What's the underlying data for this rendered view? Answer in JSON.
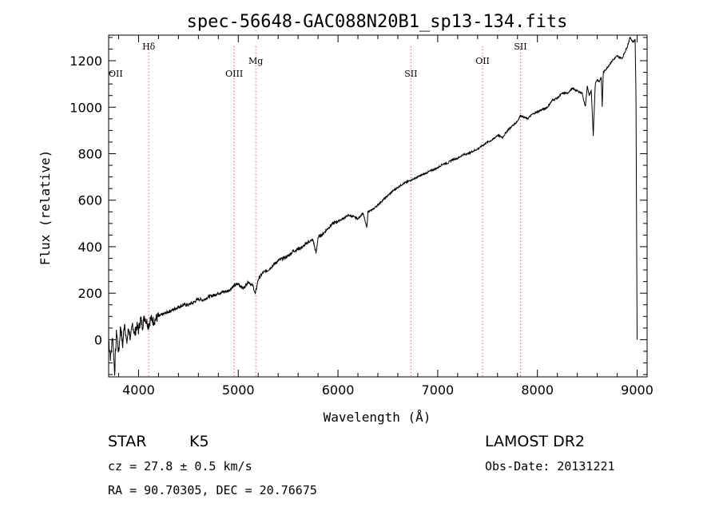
{
  "chart_data": {
    "type": "line",
    "title": "spec-56648-GAC088N20B1_sp13-134.fits",
    "xlabel": "Wavelength (Å)",
    "ylabel": "Flux (relative)",
    "xlim": [
      3700,
      9100
    ],
    "ylim": [
      -160,
      1310
    ],
    "xticks": [
      4000,
      5000,
      6000,
      7000,
      8000,
      9000
    ],
    "yticks": [
      0,
      200,
      400,
      600,
      800,
      1000,
      1200
    ],
    "series": [
      {
        "name": "flux",
        "x": [
          3700,
          3720,
          3740,
          3760,
          3780,
          3800,
          3820,
          3840,
          3860,
          3880,
          3900,
          3920,
          3940,
          3960,
          3980,
          4000,
          4020,
          4040,
          4060,
          4080,
          4100,
          4120,
          4150,
          4200,
          4250,
          4300,
          4350,
          4400,
          4450,
          4500,
          4550,
          4600,
          4650,
          4700,
          4750,
          4800,
          4850,
          4900,
          4950,
          5000,
          5050,
          5100,
          5150,
          5170,
          5200,
          5250,
          5300,
          5350,
          5400,
          5450,
          5500,
          5550,
          5600,
          5650,
          5700,
          5750,
          5780,
          5800,
          5850,
          5900,
          5950,
          6000,
          6050,
          6100,
          6150,
          6200,
          6250,
          6290,
          6300,
          6350,
          6400,
          6450,
          6500,
          6550,
          6600,
          6650,
          6700,
          6750,
          6800,
          6850,
          6900,
          6950,
          7000,
          7050,
          7100,
          7150,
          7200,
          7250,
          7300,
          7350,
          7400,
          7450,
          7500,
          7550,
          7600,
          7650,
          7700,
          7750,
          7800,
          7830,
          7850,
          7900,
          7950,
          8000,
          8050,
          8100,
          8150,
          8200,
          8250,
          8300,
          8350,
          8400,
          8450,
          8480,
          8500,
          8520,
          8540,
          8560,
          8580,
          8600,
          8620,
          8640,
          8650,
          8660,
          8700,
          8750,
          8800,
          8850,
          8880,
          8900,
          8930,
          8960,
          8980,
          8990,
          9000
        ],
        "y": [
          0,
          -80,
          20,
          -140,
          40,
          -60,
          60,
          -30,
          80,
          -20,
          50,
          0,
          70,
          20,
          60,
          40,
          90,
          60,
          100,
          80,
          60,
          90,
          80,
          100,
          110,
          120,
          130,
          140,
          150,
          150,
          160,
          175,
          170,
          185,
          190,
          200,
          205,
          210,
          230,
          240,
          220,
          250,
          230,
          195,
          260,
          290,
          300,
          320,
          340,
          350,
          360,
          380,
          390,
          400,
          420,
          430,
          370,
          440,
          455,
          480,
          500,
          510,
          520,
          535,
          530,
          520,
          545,
          480,
          550,
          560,
          580,
          600,
          620,
          640,
          655,
          670,
          680,
          690,
          700,
          710,
          720,
          730,
          740,
          755,
          760,
          775,
          780,
          795,
          800,
          810,
          820,
          835,
          850,
          860,
          880,
          870,
          900,
          920,
          940,
          965,
          960,
          950,
          970,
          980,
          990,
          1000,
          1030,
          1040,
          1060,
          1060,
          1080,
          1070,
          1060,
          1000,
          1090,
          1050,
          1070,
          880,
          1100,
          1120,
          1110,
          1130,
          1000,
          1150,
          1170,
          1200,
          1220,
          1210,
          1240,
          1260,
          1300,
          1280,
          1290,
          1000,
          0
        ]
      }
    ],
    "line_labels": [
      {
        "text": "OII",
        "x": 3727
      },
      {
        "text": "Hδ",
        "x": 4102
      },
      {
        "text": "OIII",
        "x": 4959
      },
      {
        "text": "Mg",
        "x": 5175
      },
      {
        "text": "SII",
        "x": 6731
      },
      {
        "text": "OII",
        "x": 7450
      },
      {
        "text": "SII",
        "x": 7830
      }
    ],
    "line_label_positions": [
      "low",
      "high",
      "low",
      "mid",
      "low",
      "mid",
      "high"
    ],
    "marker_lines": [
      4102,
      4959,
      5175,
      6731,
      7450,
      7830
    ]
  },
  "info": {
    "class_label": "STAR",
    "subclass_label": "K5",
    "survey": "LAMOST DR2",
    "redshift": "cz = 27.8 ± 0.5 km/s",
    "obs_date": "Obs-Date: 20131221",
    "coords": "RA =  90.70305, DEC =  20.76675"
  },
  "colors": {
    "axis": "#000000",
    "spectrum": "#000000",
    "marker_line": "#cc3333"
  }
}
